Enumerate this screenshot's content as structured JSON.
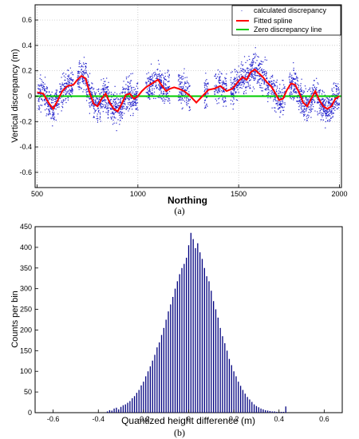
{
  "chart_data": [
    {
      "type": "scatter",
      "panel_label": "(a)",
      "xlabel": "Northing",
      "ylabel": "Vertical discrepancy (m)",
      "xlim": [
        490,
        2010
      ],
      "ylim": [
        -0.72,
        0.72
      ],
      "xticks": [
        500,
        1000,
        1500,
        2000
      ],
      "yticks": [
        -0.6,
        -0.4,
        -0.2,
        0,
        0.2,
        0.4,
        0.6
      ],
      "xtick_labels": [
        "500",
        "1000",
        "1500",
        "2000"
      ],
      "ytick_labels": [
        "-0.6",
        "-0.4",
        "-0.2",
        "0",
        "0.2",
        "0.4",
        "0.6"
      ],
      "grid": true,
      "legend_position": "top-right",
      "series": [
        {
          "name": "calculated discrepancy",
          "style": "points",
          "color": "#2222cc",
          "n_points": 3000,
          "segments": [
            [
              505,
              680
            ],
            [
              700,
              1000
            ],
            [
              1040,
              1160
            ],
            [
              1200,
              1260
            ],
            [
              1330,
              1350
            ],
            [
              1380,
              1440
            ],
            [
              1460,
              1730
            ],
            [
              1750,
              2000
            ]
          ]
        },
        {
          "name": "Fitted spline",
          "style": "line",
          "color": "#ff0000",
          "x": [
            500,
            530,
            560,
            580,
            600,
            625,
            650,
            680,
            700,
            720,
            740,
            760,
            780,
            800,
            820,
            840,
            860,
            880,
            900,
            920,
            940,
            960,
            980,
            1000,
            1020,
            1040,
            1060,
            1080,
            1100,
            1120,
            1140,
            1160,
            1180,
            1200,
            1230,
            1260,
            1290,
            1320,
            1350,
            1380,
            1410,
            1440,
            1470,
            1500,
            1520,
            1540,
            1560,
            1580,
            1600,
            1620,
            1640,
            1660,
            1680,
            1700,
            1720,
            1740,
            1760,
            1780,
            1800,
            1820,
            1840,
            1860,
            1880,
            1900,
            1920,
            1940,
            1960,
            1980,
            2000
          ],
          "y": [
            0.03,
            0.02,
            -0.06,
            -0.1,
            -0.04,
            0.04,
            0.08,
            0.09,
            0.13,
            0.16,
            0.14,
            0.03,
            -0.06,
            -0.08,
            -0.02,
            0.02,
            -0.05,
            -0.1,
            -0.12,
            -0.06,
            0.01,
            0.02,
            -0.02,
            0.0,
            0.04,
            0.07,
            0.09,
            0.11,
            0.13,
            0.08,
            0.04,
            0.06,
            0.07,
            0.06,
            0.04,
            0.0,
            -0.05,
            0.0,
            0.05,
            0.06,
            0.08,
            0.04,
            0.06,
            0.12,
            0.15,
            0.13,
            0.19,
            0.21,
            0.18,
            0.15,
            0.11,
            0.08,
            0.03,
            -0.03,
            -0.02,
            0.05,
            0.1,
            0.09,
            0.03,
            -0.05,
            -0.08,
            -0.02,
            0.04,
            -0.03,
            -0.08,
            -0.1,
            -0.08,
            -0.02,
            0.0
          ]
        },
        {
          "name": "Zero discrepancy line",
          "style": "line",
          "color": "#00cc00",
          "x": [
            490,
            2010
          ],
          "y": [
            0,
            0
          ]
        }
      ]
    },
    {
      "type": "bar",
      "panel_label": "(b)",
      "xlabel": "Quantized height difference (m)",
      "ylabel": "Counts per bin",
      "xlim": [
        -0.68,
        0.68
      ],
      "ylim": [
        0,
        450
      ],
      "xticks": [
        -0.6,
        -0.4,
        -0.2,
        0,
        0.2,
        0.4,
        0.6
      ],
      "yticks": [
        0,
        50,
        100,
        150,
        200,
        250,
        300,
        350,
        400,
        450
      ],
      "xtick_labels": [
        "-0.6",
        "-0.4",
        "-0.2",
        "0",
        "0.2",
        "0.4",
        "0.6"
      ],
      "ytick_labels": [
        "0",
        "50",
        "100",
        "150",
        "200",
        "250",
        "300",
        "350",
        "400",
        "450"
      ],
      "grid": false,
      "color": "#00007f",
      "bin_centers": [
        -0.36,
        -0.35,
        -0.34,
        -0.33,
        -0.32,
        -0.31,
        -0.3,
        -0.29,
        -0.28,
        -0.27,
        -0.26,
        -0.25,
        -0.24,
        -0.23,
        -0.22,
        -0.21,
        -0.2,
        -0.19,
        -0.18,
        -0.17,
        -0.16,
        -0.15,
        -0.14,
        -0.13,
        -0.12,
        -0.11,
        -0.1,
        -0.09,
        -0.08,
        -0.07,
        -0.06,
        -0.05,
        -0.04,
        -0.03,
        -0.02,
        -0.01,
        0.0,
        0.01,
        0.02,
        0.03,
        0.04,
        0.05,
        0.06,
        0.07,
        0.08,
        0.09,
        0.1,
        0.11,
        0.12,
        0.13,
        0.14,
        0.15,
        0.16,
        0.17,
        0.18,
        0.19,
        0.2,
        0.21,
        0.22,
        0.23,
        0.24,
        0.25,
        0.26,
        0.27,
        0.28,
        0.29,
        0.3,
        0.31,
        0.32,
        0.33,
        0.34,
        0.35,
        0.36,
        0.37,
        0.38,
        0.39,
        0.4,
        0.41,
        0.42,
        0.43
      ],
      "counts": [
        3,
        6,
        5,
        10,
        12,
        8,
        14,
        18,
        20,
        24,
        28,
        35,
        40,
        48,
        55,
        66,
        75,
        88,
        100,
        112,
        126,
        140,
        158,
        170,
        188,
        205,
        225,
        245,
        262,
        280,
        300,
        318,
        335,
        350,
        360,
        375,
        405,
        435,
        420,
        398,
        410,
        388,
        372,
        350,
        330,
        318,
        295,
        270,
        250,
        230,
        205,
        185,
        168,
        150,
        130,
        115,
        100,
        88,
        75,
        65,
        55,
        46,
        38,
        32,
        26,
        20,
        16,
        13,
        10,
        8,
        6,
        5,
        4,
        3,
        3,
        2,
        2,
        2,
        2,
        15
      ]
    }
  ]
}
